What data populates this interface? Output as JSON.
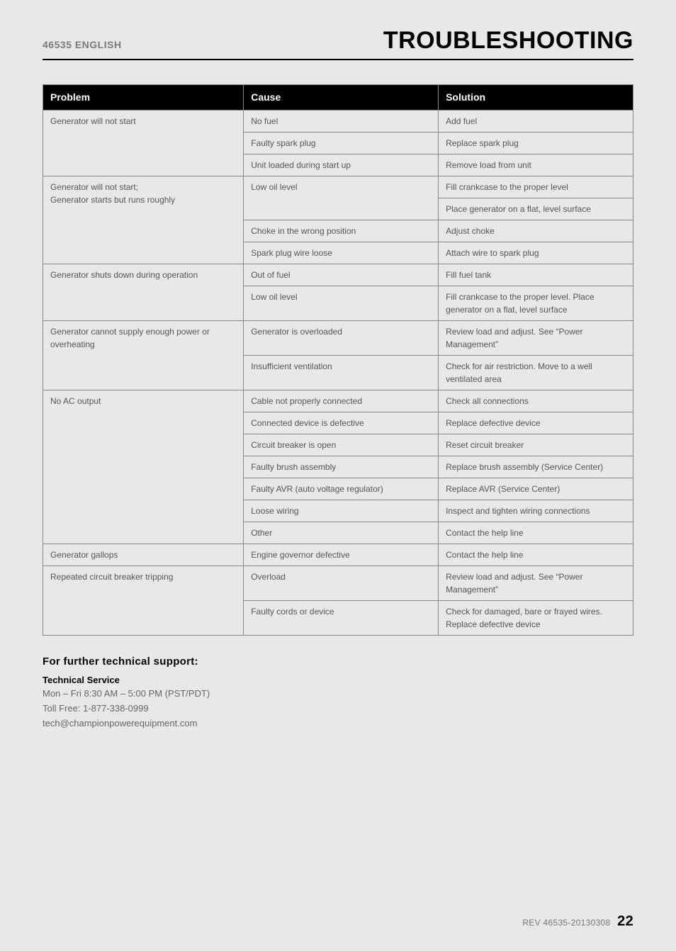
{
  "header": {
    "model": "46535",
    "language": "ENGLISH",
    "title": "TROUBLESHOOTING"
  },
  "table": {
    "columns": [
      "Problem",
      "Cause",
      "Solution"
    ],
    "groups": [
      {
        "problem": "Generator will not start",
        "rows": [
          {
            "cause": "No fuel",
            "solution": "Add fuel"
          },
          {
            "cause": "Faulty spark plug",
            "solution": "Replace spark plug"
          },
          {
            "cause": "Unit loaded during start up",
            "solution": "Remove load from unit"
          }
        ]
      },
      {
        "problem": "Generator will not start;\nGenerator starts but runs roughly",
        "rows": [
          {
            "cause": "Low oil level",
            "solution": "Fill crankcase to the proper level",
            "causeRowspan": 2
          },
          {
            "solution": "Place generator on a flat, level surface"
          },
          {
            "cause": "Choke in the wrong position",
            "solution": "Adjust choke"
          },
          {
            "cause": "Spark plug wire loose",
            "solution": "Attach wire to spark plug"
          }
        ]
      },
      {
        "problem": "Generator shuts down during operation",
        "rows": [
          {
            "cause": "Out of fuel",
            "solution": "Fill fuel tank"
          },
          {
            "cause": "Low oil level",
            "solution": "Fill crankcase to the proper level. Place generator on a flat, level surface"
          }
        ]
      },
      {
        "problem": "Generator cannot supply enough power or overheating",
        "rows": [
          {
            "cause": "Generator is overloaded",
            "solution": "Review load and adjust. See “Power Management”"
          },
          {
            "cause": "Insufficient ventilation",
            "solution": "Check for air restriction. Move to a well ventilated area"
          }
        ]
      },
      {
        "problem": "No AC output",
        "rows": [
          {
            "cause": "Cable not properly connected",
            "solution": "Check all connections"
          },
          {
            "cause": "Connected device is defective",
            "solution": "Replace defective device"
          },
          {
            "cause": "Circuit breaker is open",
            "solution": "Reset circuit breaker"
          },
          {
            "cause": "Faulty brush assembly",
            "solution": "Replace brush assembly (Service Center)"
          },
          {
            "cause": "Faulty AVR (auto voltage regulator)",
            "solution": "Replace AVR (Service Center)"
          },
          {
            "cause": "Loose wiring",
            "solution": "Inspect and tighten wiring connections"
          },
          {
            "cause": "Other",
            "solution": "Contact the help line"
          }
        ]
      },
      {
        "problem": "Generator gallops",
        "rows": [
          {
            "cause": "Engine governor defective",
            "solution": "Contact the help line"
          }
        ]
      },
      {
        "problem": "Repeated circuit breaker tripping",
        "rows": [
          {
            "cause": "Overload",
            "solution": "Review load and adjust. See “Power Management”"
          },
          {
            "cause": "Faulty cords or device",
            "solution": "Check for damaged, bare or frayed wires. Replace defective device"
          }
        ]
      }
    ]
  },
  "support": {
    "heading": "For further technical support:",
    "subheading": "Technical Service",
    "hours": "Mon – Fri 8:30 AM – 5:00 PM (PST/PDT)",
    "phone": "Toll Free: 1-877-338-0999",
    "email": "tech@championpowerequipment.com"
  },
  "footer": {
    "rev": "REV 46535-20130308",
    "page": "22"
  }
}
